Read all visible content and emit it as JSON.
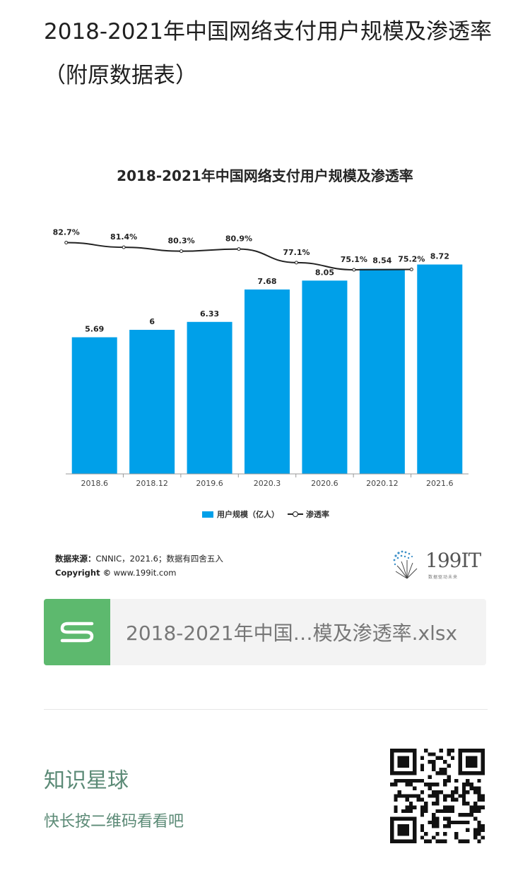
{
  "post": {
    "title": "2018-2021年中国网络支付用户规模及渗透率（附原数据表）"
  },
  "chart_data": {
    "type": "bar",
    "title": "2018-2021年中国网络支付用户规模及渗透率",
    "categories": [
      "2018.6",
      "2018.12",
      "2019.6",
      "2020.3",
      "2020.6",
      "2020.12",
      "2021.6"
    ],
    "series": [
      {
        "name": "用户规模（亿人）",
        "type": "bar",
        "values": [
          5.69,
          6,
          6.33,
          7.68,
          8.05,
          8.54,
          8.72
        ],
        "labels": [
          "5.69",
          "6",
          "6.33",
          "7.68",
          "8.05",
          "8.54",
          "8.72"
        ]
      },
      {
        "name": "渗透率",
        "type": "line",
        "values": [
          82.7,
          81.4,
          80.3,
          80.9,
          77.1,
          75.1,
          75.2
        ],
        "labels": [
          "82.7%",
          "81.4%",
          "80.3%",
          "80.9%",
          "77.1%",
          "75.1%",
          "75.2%"
        ]
      }
    ],
    "legend": "bottom-center",
    "grid": false,
    "colors": {
      "bar": "#00a0e9",
      "line": "#222222"
    }
  },
  "source": {
    "label": "数据来源：",
    "text": "CNNIC，2021.6；数据有四舍五入",
    "copyright_label": "Copyright ©",
    "copyright_url": "www.199it.com"
  },
  "brand": {
    "name": "199IT",
    "tagline": "数据驱动未来",
    "icon": "dandelion-logo-icon"
  },
  "file": {
    "name": "2018-2021年中国…模及渗透率.xlsx",
    "icon": "spreadsheet-s-icon",
    "icon_color": "#5db96e"
  },
  "planet": {
    "name": "知识星球",
    "hint": "快长按二维码看看吧",
    "qr_icon": "qr-code-icon"
  }
}
